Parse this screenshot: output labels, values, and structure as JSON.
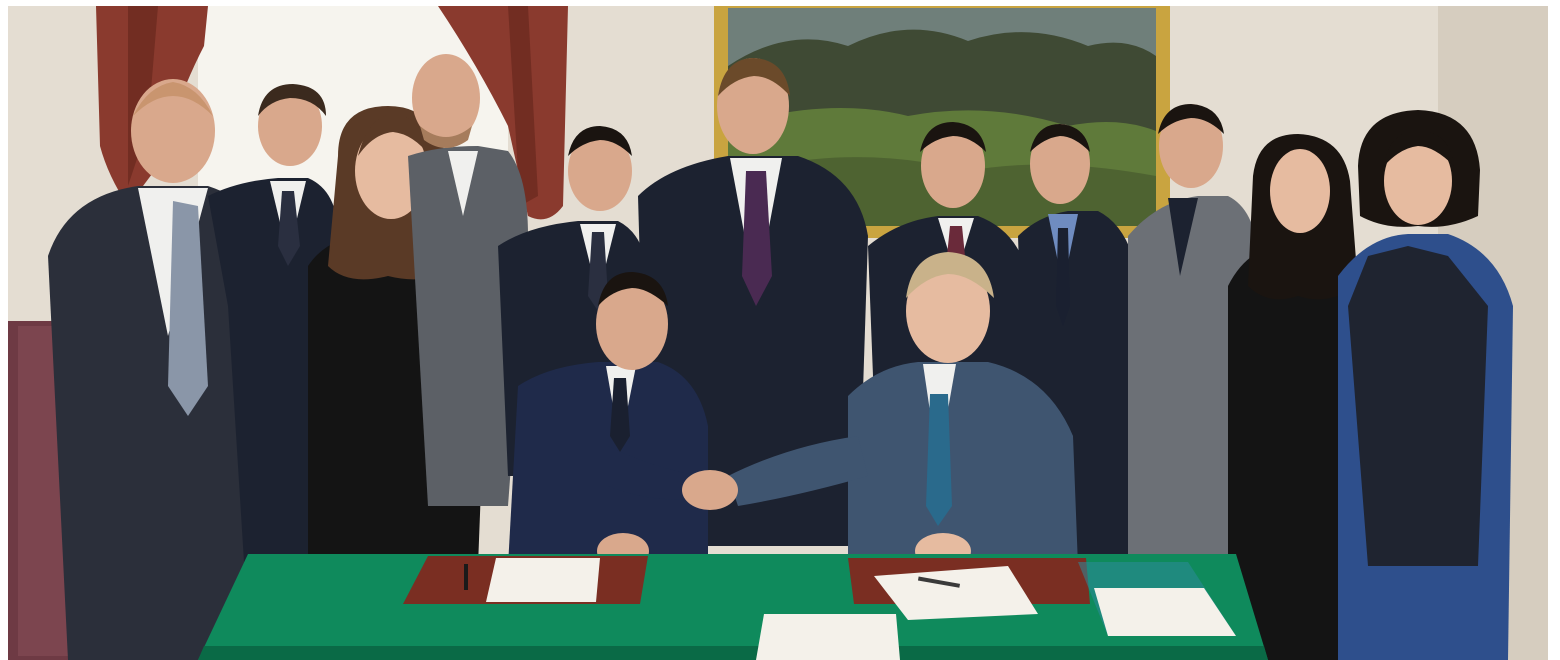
{
  "photo": {
    "subject": "signing-ceremony",
    "colors": {
      "wall": "#e4ddd2",
      "wall_shadow": "#cfc6b8",
      "curtain": "#8a3a2e",
      "curtain_dark": "#5e2219",
      "window_light": "#f6f4ee",
      "frame_gold": "#c9a440",
      "painting_sky": "#6f7f7a",
      "painting_hill": "#3f4a34",
      "painting_field": "#5f7a3a",
      "table_green": "#0f8a5c",
      "table_edge": "#0a6a46",
      "blotter": "#7a2e22",
      "paper": "#f4f1ea",
      "suit_dark": "#1c2230",
      "suit_navy": "#1f2a4a",
      "suit_grey": "#5c6066",
      "suit_blue_grey": "#3f5570",
      "dress_black": "#141414",
      "shirt_white": "#f0f0ee",
      "shirt_blue": "#2e4f8c",
      "skin": "#d9a88c",
      "skin_light": "#e6bba0",
      "hair_dark": "#1a1410",
      "hair_brown": "#5a3a26",
      "hair_blond": "#c9b28a",
      "sofa": "#6e3a44"
    }
  }
}
